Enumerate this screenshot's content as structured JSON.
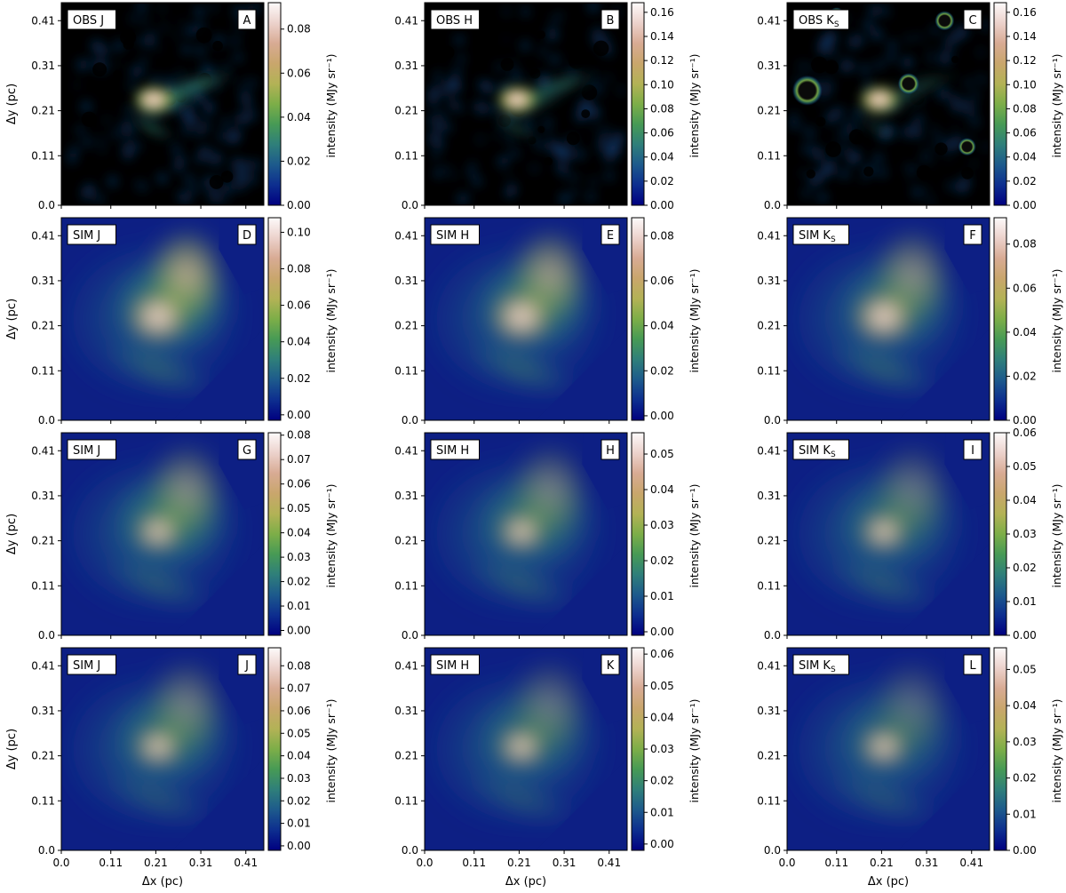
{
  "chart_data": {
    "type": "heatmap",
    "layout": "4 rows x 3 columns of intensity maps, each with its own colorbar",
    "colormap": "gist_earth-like: dark navy -> blue -> teal -> green -> olive/tan -> light pink/white",
    "colors": [
      "#000080",
      "#0d2e8f",
      "#1d5a8c",
      "#2f7f7a",
      "#479a55",
      "#7dae48",
      "#b3b256",
      "#c9a66c",
      "#d8ab94",
      "#ecd2cc",
      "#fdfafa"
    ],
    "shared_axes": {
      "xlabel": "Δx (pc)",
      "ylabel": "Δy (pc)",
      "x_ticks": [
        "0.0",
        "0.11",
        "0.21",
        "0.31",
        "0.41"
      ],
      "y_ticks": [
        "0.0",
        "0.11",
        "0.21",
        "0.31",
        "0.41"
      ],
      "xlim": [
        0.0,
        0.45
      ],
      "ylim": [
        0.0,
        0.45
      ]
    },
    "colorbar_label": "intensity (MJy sr⁻¹)",
    "panels": [
      {
        "label": "OBS J",
        "letter": "A",
        "kind": "obs",
        "vmin": 0,
        "vmax": 0.092,
        "cb_ticks": [
          "0.00",
          "0.02",
          "0.04",
          "0.06",
          "0.08"
        ],
        "cb_values": [
          0,
          0.02,
          0.04,
          0.06,
          0.08
        ]
      },
      {
        "label": "OBS H",
        "letter": "B",
        "kind": "obs",
        "vmin": 0,
        "vmax": 0.168,
        "cb_ticks": [
          "0.00",
          "0.02",
          "0.04",
          "0.06",
          "0.08",
          "0.10",
          "0.12",
          "0.14",
          "0.16"
        ],
        "cb_values": [
          0,
          0.02,
          0.04,
          0.06,
          0.08,
          0.1,
          0.12,
          0.14,
          0.16
        ]
      },
      {
        "label": "OBS KS",
        "letter": "C",
        "kind": "obs",
        "vmin": 0,
        "vmax": 0.168,
        "cb_ticks": [
          "0.00",
          "0.02",
          "0.04",
          "0.06",
          "0.08",
          "0.10",
          "0.12",
          "0.14",
          "0.16"
        ],
        "cb_values": [
          0,
          0.02,
          0.04,
          0.06,
          0.08,
          0.1,
          0.12,
          0.14,
          0.16
        ]
      },
      {
        "label": "SIM J",
        "letter": "D",
        "kind": "sim",
        "vmin": -0.003,
        "vmax": 0.108,
        "cb_ticks": [
          "0.00",
          "0.02",
          "0.04",
          "0.06",
          "0.08",
          "0.10"
        ],
        "cb_values": [
          0,
          0.02,
          0.04,
          0.06,
          0.08,
          0.1
        ]
      },
      {
        "label": "SIM H",
        "letter": "E",
        "kind": "sim",
        "vmin": -0.002,
        "vmax": 0.088,
        "cb_ticks": [
          "0.00",
          "0.02",
          "0.04",
          "0.06",
          "0.08"
        ],
        "cb_values": [
          0,
          0.02,
          0.04,
          0.06,
          0.08
        ]
      },
      {
        "label": "SIM KS",
        "letter": "F",
        "kind": "sim",
        "vmin": 0,
        "vmax": 0.092,
        "cb_ticks": [
          "0.00",
          "0.02",
          "0.04",
          "0.06",
          "0.08"
        ],
        "cb_values": [
          0,
          0.02,
          0.04,
          0.06,
          0.08
        ]
      },
      {
        "label": "SIM J",
        "letter": "G",
        "kind": "sim",
        "vmin": -0.002,
        "vmax": 0.081,
        "cb_ticks": [
          "0.00",
          "0.01",
          "0.02",
          "0.03",
          "0.04",
          "0.05",
          "0.06",
          "0.07",
          "0.08"
        ],
        "cb_values": [
          0,
          0.01,
          0.02,
          0.03,
          0.04,
          0.05,
          0.06,
          0.07,
          0.08
        ]
      },
      {
        "label": "SIM H",
        "letter": "H",
        "kind": "sim",
        "vmin": -0.001,
        "vmax": 0.056,
        "cb_ticks": [
          "0.00",
          "0.01",
          "0.02",
          "0.03",
          "0.04",
          "0.05"
        ],
        "cb_values": [
          0,
          0.01,
          0.02,
          0.03,
          0.04,
          0.05
        ]
      },
      {
        "label": "SIM KS",
        "letter": "I",
        "kind": "sim",
        "vmin": 0,
        "vmax": 0.06,
        "cb_ticks": [
          "0.00",
          "0.01",
          "0.02",
          "0.03",
          "0.04",
          "0.05",
          "0.06"
        ],
        "cb_values": [
          0,
          0.01,
          0.02,
          0.03,
          0.04,
          0.05,
          0.06
        ]
      },
      {
        "label": "SIM J",
        "letter": "J",
        "kind": "sim",
        "vmin": -0.002,
        "vmax": 0.088,
        "cb_ticks": [
          "0.00",
          "0.01",
          "0.02",
          "0.03",
          "0.04",
          "0.05",
          "0.06",
          "0.07",
          "0.08"
        ],
        "cb_values": [
          0,
          0.01,
          0.02,
          0.03,
          0.04,
          0.05,
          0.06,
          0.07,
          0.08
        ]
      },
      {
        "label": "SIM H",
        "letter": "K",
        "kind": "sim",
        "vmin": -0.002,
        "vmax": 0.062,
        "cb_ticks": [
          "0.00",
          "0.01",
          "0.02",
          "0.03",
          "0.04",
          "0.05",
          "0.06"
        ],
        "cb_values": [
          0,
          0.01,
          0.02,
          0.03,
          0.04,
          0.05,
          0.06
        ]
      },
      {
        "label": "SIM KS",
        "letter": "L",
        "kind": "sim",
        "vmin": 0,
        "vmax": 0.056,
        "cb_ticks": [
          "0.00",
          "0.01",
          "0.02",
          "0.03",
          "0.04",
          "0.05"
        ],
        "cb_values": [
          0,
          0.01,
          0.02,
          0.03,
          0.04,
          0.05
        ]
      }
    ]
  }
}
